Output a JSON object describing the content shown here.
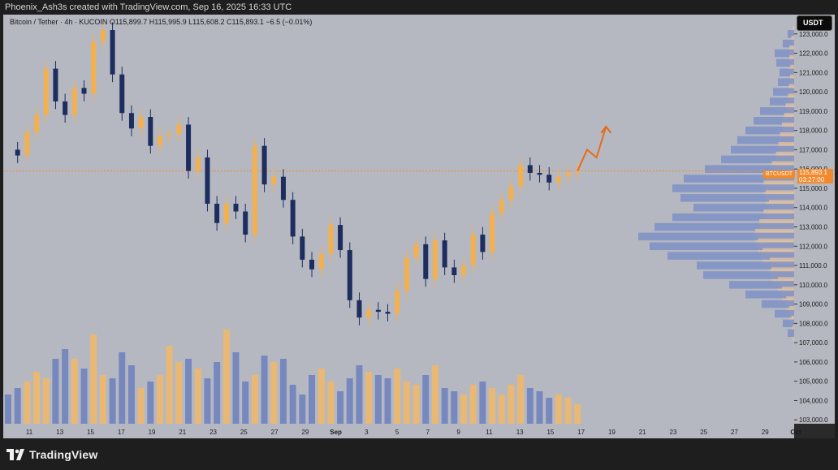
{
  "header": {
    "credit": "Phoenix_Ash3s created with TradingView.com, Sep 16, 2025 16:33 UTC"
  },
  "legend": {
    "text": "Bitcoin / Tether · 4h · KUCOIN  O115,899.7  H115,995.9  L115,608.2  C115,893.1  −6.5 (−0.01%)"
  },
  "footer": {
    "brand": "TradingView"
  },
  "colors": {
    "background": "#b6b8c1",
    "up": "#f3b04f",
    "down": "#1c2d5e",
    "volume_up": "#f2b766",
    "volume_down": "#6b7fbd",
    "profile": "#7b8fc6",
    "profile_bg": "#dcc1a3",
    "price_line": "#f08a2a",
    "arrow": "#e86a17"
  },
  "chart_data": {
    "type": "candlestick",
    "quote": "USDT",
    "symbol": "BTCUSDT",
    "last_price": "115,893.1",
    "countdown": "03:27:00",
    "ylim": [
      102800,
      124000
    ],
    "y_ticks": [
      103000,
      104000,
      105000,
      106000,
      107000,
      108000,
      109000,
      110000,
      111000,
      112000,
      113000,
      114000,
      115000,
      116000,
      117000,
      118000,
      119000,
      120000,
      121000,
      122000,
      123000
    ],
    "y_tick_labels": [
      "103,000.0",
      "104,000.0",
      "105,000.0",
      "106,000.0",
      "107,000.0",
      "108,000.0",
      "109,000.0",
      "110,000.0",
      "111,000.0",
      "112,000.0",
      "113,000.0",
      "114,000.0",
      "115,000.0",
      "116,000.0",
      "117,000.0",
      "118,000.0",
      "119,000.0",
      "120,000.0",
      "121,000.0",
      "122,000.0",
      "123,000.0"
    ],
    "x_tick_labels": [
      "11",
      "13",
      "15",
      "17",
      "19",
      "21",
      "23",
      "25",
      "27",
      "29",
      "Sep",
      "3",
      "5",
      "7",
      "9",
      "11",
      "13",
      "15",
      "17",
      "19",
      "21",
      "23",
      "25",
      "27",
      "29",
      "Oct"
    ],
    "price_trend": [
      [
        0,
        117000
      ],
      [
        1,
        116700
      ],
      [
        2,
        117900
      ],
      [
        3,
        118800
      ],
      [
        4,
        121200
      ],
      [
        5,
        119500
      ],
      [
        6,
        118800
      ],
      [
        7,
        120200
      ],
      [
        8,
        119900
      ],
      [
        9,
        122600
      ],
      [
        10,
        123200
      ],
      [
        11,
        120900
      ],
      [
        12,
        118900
      ],
      [
        13,
        118100
      ],
      [
        14,
        118700
      ],
      [
        15,
        117200
      ],
      [
        16,
        117700
      ],
      [
        17,
        117800
      ],
      [
        18,
        118300
      ],
      [
        19,
        115900
      ],
      [
        20,
        116600
      ],
      [
        21,
        114200
      ],
      [
        22,
        113200
      ],
      [
        23,
        114200
      ],
      [
        24,
        113800
      ],
      [
        25,
        112600
      ],
      [
        26,
        117200
      ],
      [
        27,
        115200
      ],
      [
        28,
        115600
      ],
      [
        29,
        114400
      ],
      [
        30,
        112500
      ],
      [
        31,
        111300
      ],
      [
        32,
        110800
      ],
      [
        33,
        111600
      ],
      [
        34,
        113100
      ],
      [
        35,
        111800
      ],
      [
        36,
        109200
      ],
      [
        37,
        108300
      ],
      [
        38,
        108700
      ],
      [
        39,
        108600
      ],
      [
        40,
        108500
      ],
      [
        41,
        109700
      ],
      [
        42,
        111400
      ],
      [
        43,
        112100
      ],
      [
        44,
        110300
      ],
      [
        45,
        112300
      ],
      [
        46,
        110900
      ],
      [
        47,
        110500
      ],
      [
        48,
        111000
      ],
      [
        49,
        112600
      ],
      [
        50,
        111700
      ],
      [
        51,
        113700
      ],
      [
        52,
        114400
      ],
      [
        53,
        115100
      ],
      [
        54,
        116200
      ],
      [
        55,
        115800
      ],
      [
        56,
        115700
      ],
      [
        57,
        115300
      ],
      [
        58,
        115600
      ],
      [
        59,
        115800
      ],
      [
        60,
        115900
      ]
    ],
    "projection": [
      [
        60,
        115900
      ],
      [
        61,
        117000
      ],
      [
        62,
        116600
      ],
      [
        63,
        118200
      ]
    ],
    "volume": [
      18,
      22,
      26,
      32,
      28,
      40,
      46,
      40,
      34,
      55,
      30,
      28,
      44,
      36,
      22,
      26,
      30,
      48,
      38,
      40,
      34,
      28,
      38,
      58,
      44,
      26,
      30,
      42,
      38,
      40,
      24,
      18,
      30,
      34,
      26,
      20,
      28,
      36,
      32,
      30,
      28,
      34,
      26,
      24,
      30,
      36,
      22,
      20,
      18,
      24,
      26,
      22,
      18,
      24,
      30,
      22,
      20,
      16,
      18,
      16,
      12
    ],
    "volume_profile": [
      [
        123000,
        8
      ],
      [
        122500,
        14
      ],
      [
        122000,
        24
      ],
      [
        121500,
        22
      ],
      [
        121000,
        18
      ],
      [
        120500,
        20
      ],
      [
        120000,
        26
      ],
      [
        119500,
        30
      ],
      [
        119000,
        42
      ],
      [
        118500,
        50
      ],
      [
        118000,
        60
      ],
      [
        117500,
        70
      ],
      [
        117000,
        78
      ],
      [
        116500,
        90
      ],
      [
        116000,
        110
      ],
      [
        115500,
        136
      ],
      [
        115000,
        150
      ],
      [
        114500,
        140
      ],
      [
        114000,
        124
      ],
      [
        113500,
        150
      ],
      [
        113000,
        172
      ],
      [
        112500,
        192
      ],
      [
        112000,
        178
      ],
      [
        111500,
        156
      ],
      [
        111000,
        120
      ],
      [
        110500,
        112
      ],
      [
        110000,
        80
      ],
      [
        109500,
        60
      ],
      [
        109000,
        40
      ],
      [
        108500,
        24
      ],
      [
        108000,
        14
      ],
      [
        107500,
        8
      ]
    ]
  }
}
